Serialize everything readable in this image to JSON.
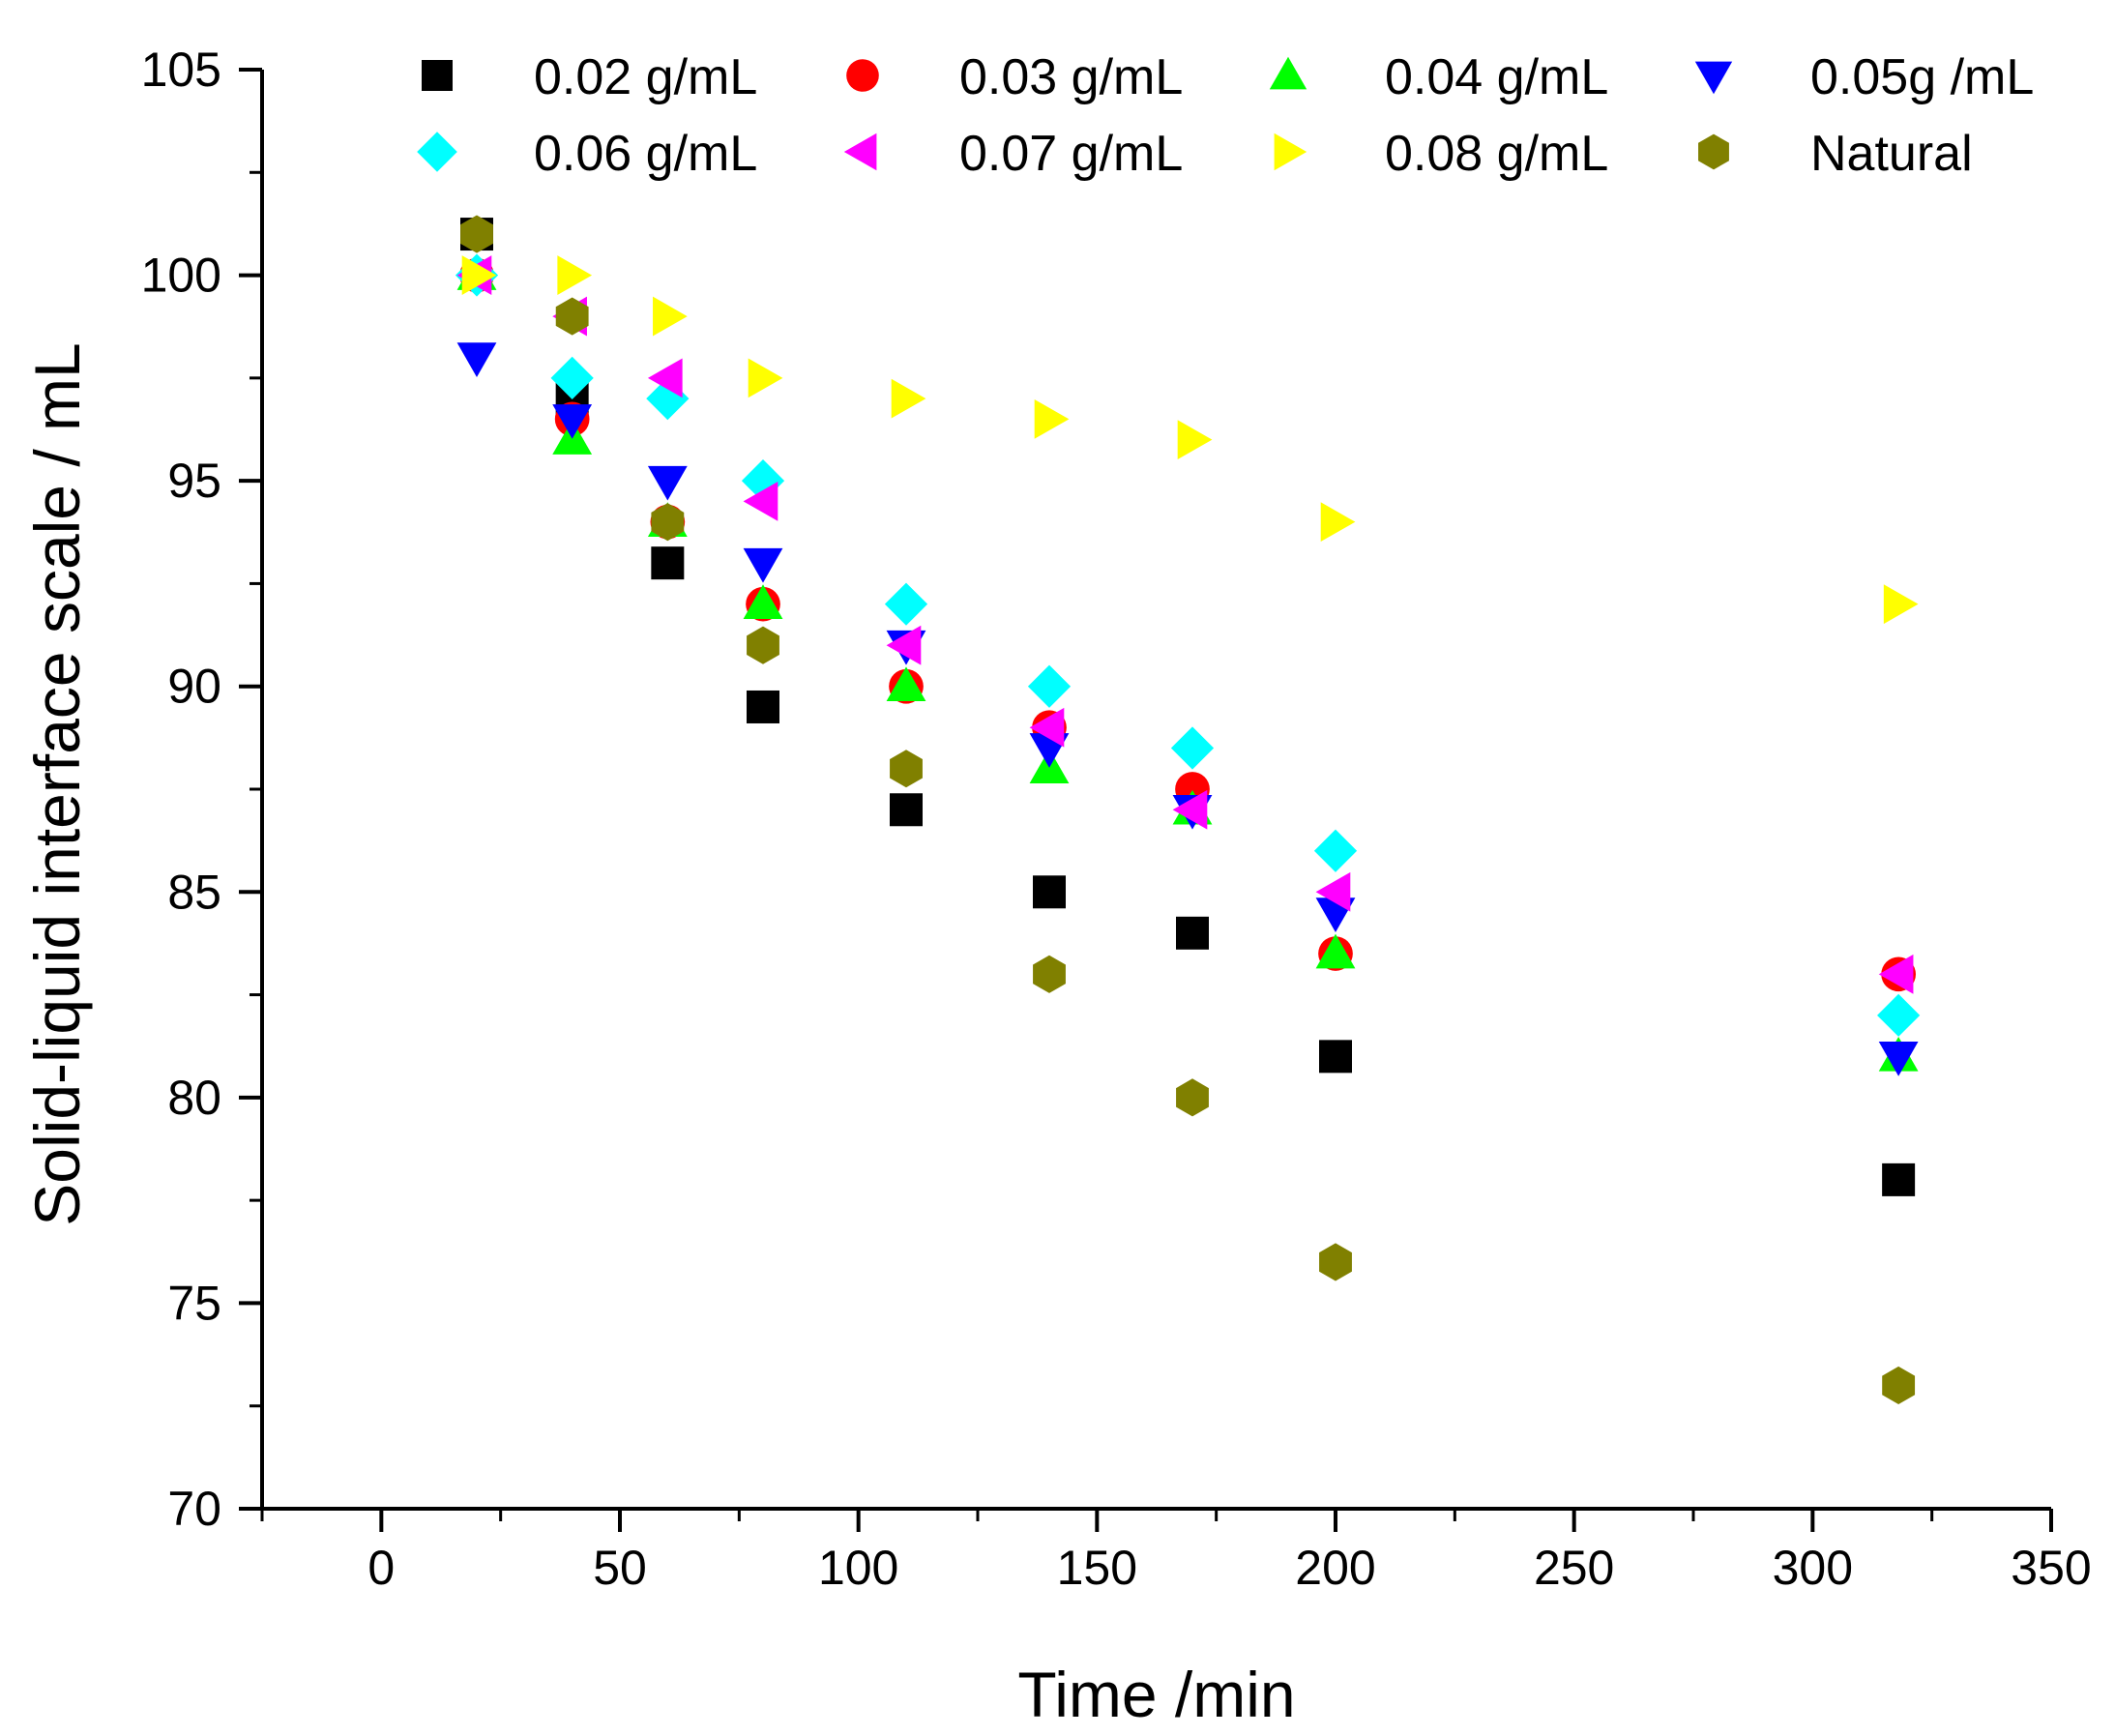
{
  "chart_data": {
    "type": "scatter",
    "title": "",
    "xlabel": "Time /min",
    "ylabel": "Solid-liquid interface scale / mL",
    "xlim": [
      -25,
      350
    ],
    "ylim": [
      70,
      105
    ],
    "x_ticks": [
      0,
      50,
      100,
      150,
      200,
      250,
      300,
      350
    ],
    "y_ticks": [
      70,
      75,
      80,
      85,
      90,
      95,
      100,
      105
    ],
    "grid": false,
    "legend_position": "top",
    "series": [
      {
        "name": "0.02 g/mL",
        "marker": "square",
        "color": "#000000",
        "x": [
          20,
          40,
          60,
          80,
          110,
          140,
          170,
          200,
          318
        ],
        "y": [
          101,
          97,
          93,
          89.5,
          87,
          85,
          84,
          81,
          78
        ]
      },
      {
        "name": "0.03 g/mL",
        "marker": "circle",
        "color": "#ff0000",
        "x": [
          20,
          40,
          60,
          80,
          110,
          140,
          170,
          200,
          318
        ],
        "y": [
          100,
          96.5,
          94,
          92,
          90,
          89,
          87.5,
          83.5,
          83
        ]
      },
      {
        "name": "0.04 g/mL",
        "marker": "triangle-up",
        "color": "#00ff00",
        "x": [
          20,
          40,
          60,
          80,
          110,
          140,
          170,
          200,
          318
        ],
        "y": [
          100,
          96,
          94,
          92,
          90,
          88,
          87,
          83.5,
          81
        ]
      },
      {
        "name": "0.05g /mL",
        "marker": "triangle-down",
        "color": "#0000ff",
        "x": [
          20,
          40,
          60,
          80,
          110,
          140,
          170,
          200,
          318
        ],
        "y": [
          98,
          96.5,
          95,
          93,
          91,
          88.5,
          87,
          84.5,
          81
        ]
      },
      {
        "name": "0.06 g/mL",
        "marker": "diamond",
        "color": "#00ffff",
        "x": [
          20,
          40,
          60,
          80,
          110,
          140,
          170,
          200,
          318
        ],
        "y": [
          100,
          97.5,
          97,
          95,
          92,
          90,
          88.5,
          86,
          82
        ]
      },
      {
        "name": "0.07 g/mL",
        "marker": "triangle-left",
        "color": "#ff00ff",
        "x": [
          20,
          40,
          60,
          80,
          110,
          140,
          170,
          200,
          318
        ],
        "y": [
          100,
          99,
          97.5,
          94.5,
          91,
          89,
          87,
          85,
          83
        ]
      },
      {
        "name": "0.08 g/mL",
        "marker": "triangle-right",
        "color": "#ffff00",
        "x": [
          20,
          40,
          60,
          80,
          110,
          140,
          170,
          200,
          318
        ],
        "y": [
          100,
          100,
          99,
          97.5,
          97,
          96.5,
          96,
          94,
          92
        ]
      },
      {
        "name": "Natural",
        "marker": "hexagon",
        "color": "#808000",
        "x": [
          20,
          40,
          60,
          80,
          110,
          140,
          170,
          200,
          318
        ],
        "y": [
          101,
          99,
          94,
          91,
          88,
          83,
          80,
          76,
          73
        ]
      }
    ]
  }
}
